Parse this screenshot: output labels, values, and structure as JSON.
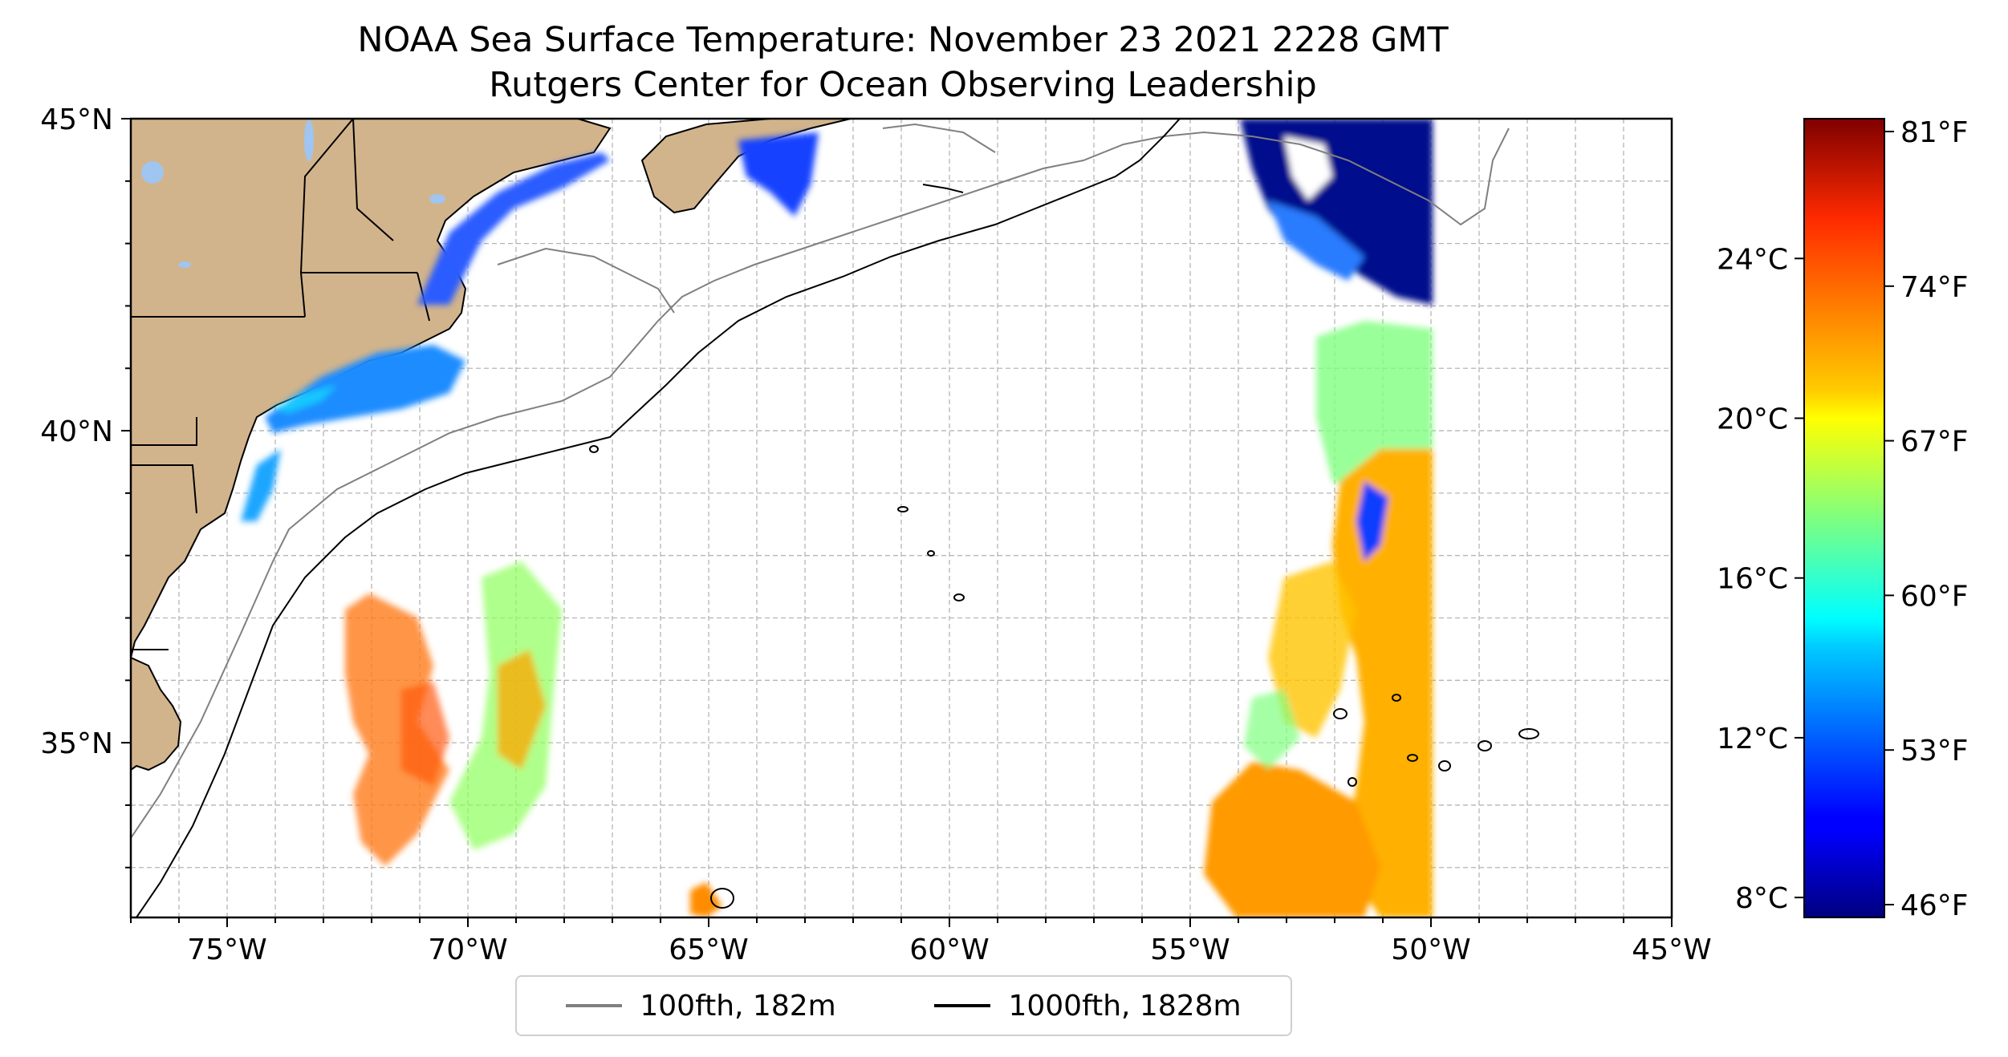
{
  "title": {
    "line1": "NOAA Sea Surface Temperature: November 23 2021 2228 GMT",
    "line2": "Rutgers Center for Ocean Observing Leadership"
  },
  "map": {
    "lon_range": [
      -77,
      -45
    ],
    "lat_range": [
      32.2,
      45
    ],
    "lon_ticks": [
      -75,
      -70,
      -65,
      -60,
      -55,
      -50,
      -45
    ],
    "lon_tick_labels": [
      "75°W",
      "70°W",
      "65°W",
      "60°W",
      "55°W",
      "50°W",
      "45°W"
    ],
    "lat_ticks": [
      35,
      40,
      45
    ],
    "lat_tick_labels": [
      "35°N",
      "40°N",
      "45°N"
    ],
    "grid": true,
    "land_color": "#d2b48c",
    "lake_color": "#9fc5f0",
    "isobaths": [
      {
        "label": "100fth, 182m",
        "color": "#808080"
      },
      {
        "label": "1000fth, 1828m",
        "color": "#000000"
      }
    ]
  },
  "colorbar": {
    "celsius_ticks": [
      8,
      12,
      16,
      20,
      24
    ],
    "celsius_labels": [
      "8°C",
      "12°C",
      "16°C",
      "20°C",
      "24°C"
    ],
    "fahrenheit_labels": [
      "46°F",
      "53°F",
      "60°F",
      "67°F",
      "74°F",
      "81°F"
    ],
    "min_c": 7.5,
    "max_c": 27.5
  }
}
